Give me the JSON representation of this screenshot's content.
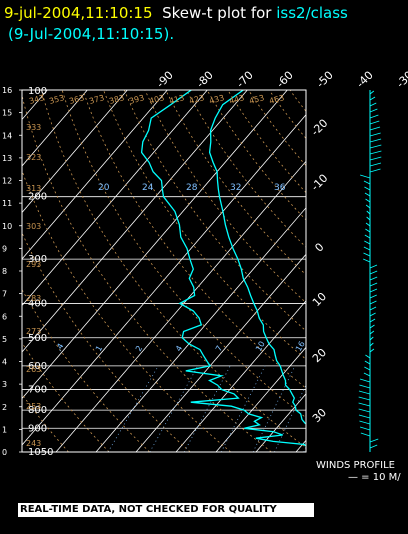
{
  "header": {
    "timestamp": "9-jul-2004,11:10:15",
    "title_text": "Skew-t plot for",
    "station": "iss2/class",
    "subtitle": "(9-Jul-2004,11:10:15)."
  },
  "chart_data": {
    "type": "skew-t",
    "pressure_axis": {
      "range_hpa": [
        1050,
        100
      ],
      "scale": "log",
      "labels": [
        100,
        200,
        300,
        400,
        500,
        600,
        700,
        800,
        900,
        1050
      ]
    },
    "height_axis": {
      "unit": "km",
      "ticks": [
        0,
        1,
        2,
        3,
        4,
        5,
        6,
        7,
        8,
        9,
        10,
        11,
        12,
        13,
        14,
        15,
        16
      ]
    },
    "top_temperature_labels": [
      -90,
      -80,
      -70,
      -60,
      -50,
      -40,
      -30
    ],
    "right_temperature_labels": [
      -20,
      -10,
      0,
      10,
      20,
      30
    ],
    "dry_adiabat_labels": [
      243,
      253,
      263,
      273,
      283,
      293,
      303,
      313,
      323,
      333,
      343,
      353,
      363,
      373,
      383,
      393,
      403,
      413,
      423,
      433,
      443,
      453,
      463
    ],
    "mixing_ratio_labels": [
      ".4",
      "1",
      "2",
      "4",
      "7",
      "10",
      "16",
      "20",
      "24",
      "28",
      "32",
      "36"
    ],
    "series": [
      {
        "name": "temperature",
        "color": "#00ffff",
        "points": [
          [
            1010,
            30
          ],
          [
            1000,
            28
          ],
          [
            975,
            26
          ],
          [
            950,
            22
          ],
          [
            925,
            20.5
          ],
          [
            900,
            19
          ],
          [
            870,
            16
          ],
          [
            850,
            14.5
          ],
          [
            820,
            13
          ],
          [
            800,
            11
          ],
          [
            780,
            10
          ],
          [
            760,
            8.5
          ],
          [
            740,
            8
          ],
          [
            720,
            6.5
          ],
          [
            700,
            5
          ],
          [
            680,
            3
          ],
          [
            660,
            2
          ],
          [
            640,
            0.5
          ],
          [
            620,
            -1
          ],
          [
            600,
            -2.5
          ],
          [
            580,
            -4.5
          ],
          [
            560,
            -6
          ],
          [
            540,
            -7.5
          ],
          [
            520,
            -10
          ],
          [
            500,
            -12
          ],
          [
            480,
            -14
          ],
          [
            460,
            -15.5
          ],
          [
            440,
            -18
          ],
          [
            420,
            -20
          ],
          [
            400,
            -22.5
          ],
          [
            380,
            -25
          ],
          [
            360,
            -27.5
          ],
          [
            340,
            -30.5
          ],
          [
            320,
            -33
          ],
          [
            300,
            -36
          ],
          [
            280,
            -39.5
          ],
          [
            260,
            -43
          ],
          [
            240,
            -46.5
          ],
          [
            220,
            -50
          ],
          [
            200,
            -54
          ],
          [
            190,
            -56
          ],
          [
            180,
            -58
          ],
          [
            170,
            -60
          ],
          [
            160,
            -63
          ],
          [
            150,
            -66
          ],
          [
            140,
            -68
          ],
          [
            130,
            -70.5
          ],
          [
            120,
            -72
          ],
          [
            110,
            -73
          ],
          [
            100,
            -71
          ]
        ]
      },
      {
        "name": "dewpoint",
        "color": "#00ffff",
        "points": [
          [
            1010,
            21
          ],
          [
            1000,
            20.5
          ],
          [
            980,
            12
          ],
          [
            960,
            7
          ],
          [
            940,
            13
          ],
          [
            920,
            10
          ],
          [
            900,
            2
          ],
          [
            880,
            5
          ],
          [
            860,
            3
          ],
          [
            840,
            4
          ],
          [
            820,
            0
          ],
          [
            800,
            -2
          ],
          [
            780,
            -6
          ],
          [
            760,
            -17
          ],
          [
            740,
            -6
          ],
          [
            720,
            -8
          ],
          [
            700,
            -12
          ],
          [
            680,
            -14
          ],
          [
            660,
            -17
          ],
          [
            640,
            -15
          ],
          [
            620,
            -25
          ],
          [
            600,
            -20
          ],
          [
            580,
            -22
          ],
          [
            560,
            -24
          ],
          [
            540,
            -26
          ],
          [
            520,
            -30
          ],
          [
            500,
            -33
          ],
          [
            480,
            -34
          ],
          [
            460,
            -31
          ],
          [
            440,
            -33
          ],
          [
            420,
            -36
          ],
          [
            400,
            -41
          ],
          [
            380,
            -39
          ],
          [
            360,
            -41
          ],
          [
            340,
            -44
          ],
          [
            320,
            -45
          ],
          [
            300,
            -48
          ],
          [
            280,
            -51
          ],
          [
            260,
            -55
          ],
          [
            240,
            -58
          ],
          [
            220,
            -62
          ],
          [
            200,
            -68
          ],
          [
            190,
            -70
          ],
          [
            180,
            -72
          ],
          [
            170,
            -76
          ],
          [
            160,
            -79
          ],
          [
            150,
            -83
          ],
          [
            140,
            -85
          ],
          [
            130,
            -86
          ],
          [
            120,
            -88
          ],
          [
            110,
            -86
          ],
          [
            100,
            -84
          ]
        ]
      }
    ],
    "winds": {
      "label": "WINDS PROFILE",
      "scale_label": "— = 10 M/"
    }
  },
  "footer": {
    "qc_banner": "REAL-TIME DATA, NOT CHECKED FOR QUALITY"
  },
  "colors": {
    "background": "#000000",
    "sounding": "#00ffff",
    "isobar": "#ffffff",
    "isotherm": "#ffffff",
    "dry_adiabat": "#c89450",
    "mixing_ratio": "#80c0ff",
    "timestamp": "#ffff00"
  }
}
